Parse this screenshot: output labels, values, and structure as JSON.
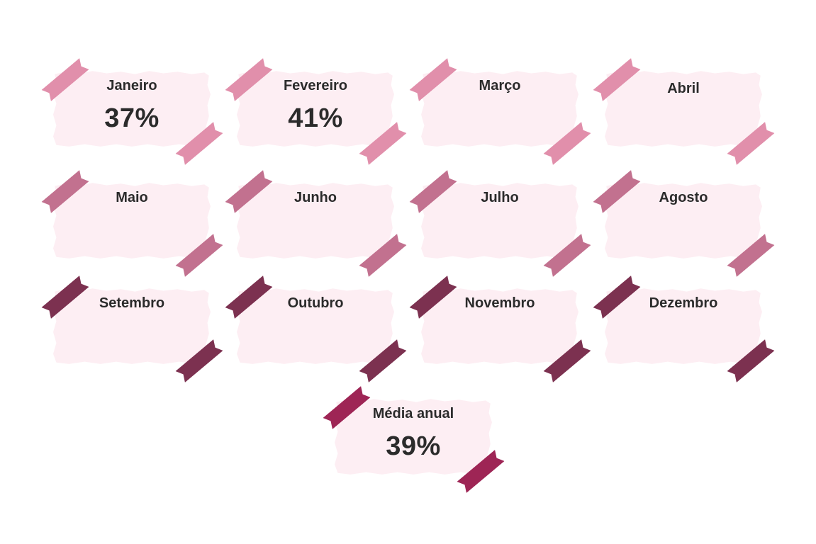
{
  "colors": {
    "paper": "#fdeef3",
    "tape_row1": "#e18fab",
    "tape_row2": "#c2718f",
    "tape_row3": "#7c3150",
    "tape_summary": "#9e2555",
    "text": "#2b2b2b"
  },
  "months": [
    {
      "label": "Janeiro",
      "value": "37%"
    },
    {
      "label": "Fevereiro",
      "value": "41%"
    },
    {
      "label": "Março",
      "value": ""
    },
    {
      "label": "Abril",
      "value": ""
    },
    {
      "label": "Maio",
      "value": ""
    },
    {
      "label": "Junho",
      "value": ""
    },
    {
      "label": "Julho",
      "value": ""
    },
    {
      "label": "Agosto",
      "value": ""
    },
    {
      "label": "Setembro",
      "value": ""
    },
    {
      "label": "Outubro",
      "value": ""
    },
    {
      "label": "Novembro",
      "value": ""
    },
    {
      "label": "Dezembro",
      "value": ""
    }
  ],
  "summary": {
    "label": "Média anual",
    "value": "39%"
  }
}
